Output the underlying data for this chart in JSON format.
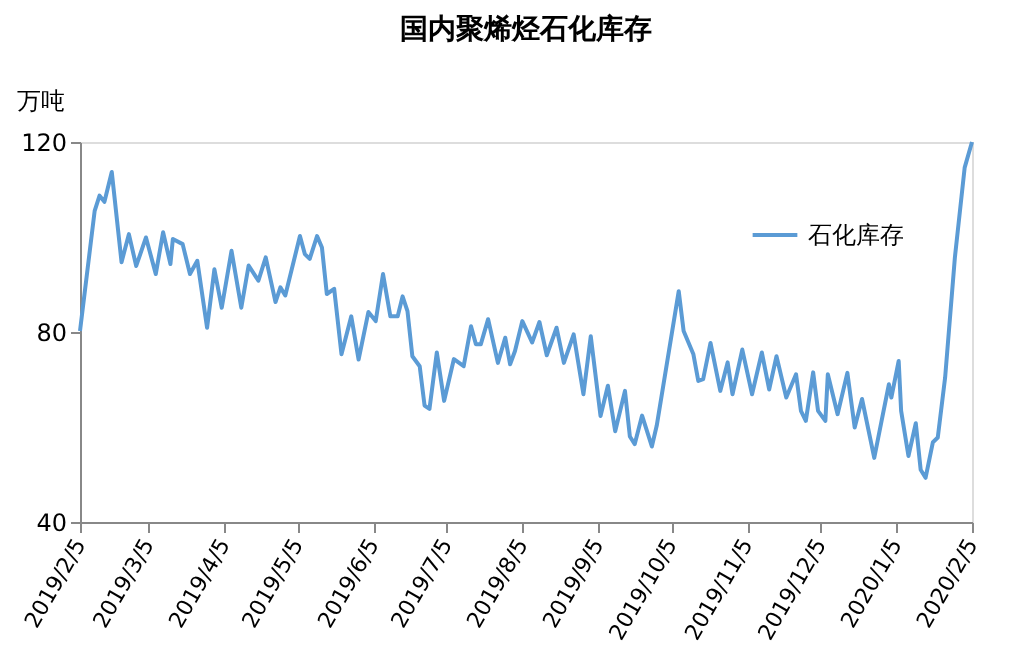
{
  "chart_data": {
    "type": "line",
    "title": "国内聚烯烃石化库存",
    "ylabel": "万吨",
    "x": [
      "2019-02-05",
      "2019-02-11",
      "2019-02-13",
      "2019-02-15",
      "2019-02-18",
      "2019-02-22",
      "2019-02-25",
      "2019-02-28",
      "2019-03-04",
      "2019-03-08",
      "2019-03-11",
      "2019-03-14",
      "2019-03-15",
      "2019-03-19",
      "2019-03-22",
      "2019-03-25",
      "2019-03-29",
      "2019-04-01",
      "2019-04-04",
      "2019-04-08",
      "2019-04-12",
      "2019-04-15",
      "2019-04-19",
      "2019-04-22",
      "2019-04-26",
      "2019-04-28",
      "2019-04-30",
      "2019-05-06",
      "2019-05-08",
      "2019-05-10",
      "2019-05-13",
      "2019-05-15",
      "2019-05-17",
      "2019-05-20",
      "2019-05-23",
      "2019-05-27",
      "2019-05-30",
      "2019-06-03",
      "2019-06-06",
      "2019-06-09",
      "2019-06-12",
      "2019-06-15",
      "2019-06-17",
      "2019-06-19",
      "2019-06-21",
      "2019-06-24",
      "2019-06-26",
      "2019-06-28",
      "2019-07-01",
      "2019-07-04",
      "2019-07-08",
      "2019-07-12",
      "2019-07-15",
      "2019-07-17",
      "2019-07-19",
      "2019-07-22",
      "2019-07-26",
      "2019-07-29",
      "2019-07-31",
      "2019-08-02",
      "2019-08-05",
      "2019-08-09",
      "2019-08-12",
      "2019-08-15",
      "2019-08-19",
      "2019-08-22",
      "2019-08-26",
      "2019-08-30",
      "2019-09-02",
      "2019-09-06",
      "2019-09-09",
      "2019-09-12",
      "2019-09-16",
      "2019-09-18",
      "2019-09-20",
      "2019-09-23",
      "2019-09-27",
      "2019-09-29",
      "2019-10-08",
      "2019-10-10",
      "2019-10-14",
      "2019-10-16",
      "2019-10-18",
      "2019-10-21",
      "2019-10-25",
      "2019-10-28",
      "2019-10-30",
      "2019-11-03",
      "2019-11-07",
      "2019-11-11",
      "2019-11-14",
      "2019-11-17",
      "2019-11-21",
      "2019-11-25",
      "2019-11-27",
      "2019-11-29",
      "2019-12-02",
      "2019-12-04",
      "2019-12-07",
      "2019-12-08",
      "2019-12-12",
      "2019-12-16",
      "2019-12-19",
      "2019-12-22",
      "2019-12-27",
      "2019-12-30",
      "2020-01-02",
      "2020-01-03",
      "2020-01-06",
      "2020-01-07",
      "2020-01-10",
      "2020-01-13",
      "2020-01-15",
      "2020-01-17",
      "2020-01-20",
      "2020-01-22",
      "2020-01-25",
      "2020-01-29",
      "2020-02-02",
      "2020-02-05"
    ],
    "series": [
      {
        "name": "石化库存",
        "color": "#5b9bd5",
        "values": [
          80.2,
          105.5,
          108.7,
          107.4,
          113.7,
          94.7,
          100.6,
          93.9,
          99.9,
          92.2,
          101,
          94.3,
          99.6,
          98.5,
          92.2,
          95,
          80.9,
          93.2,
          85.1,
          97.1,
          85.1,
          94,
          90.8,
          95.7,
          86.3,
          89.4,
          87.7,
          100.2,
          96.4,
          95.4,
          100.2,
          97.8,
          88,
          89.1,
          75.3,
          83.3,
          74.2,
          84.2,
          82.3,
          92.2,
          83.3,
          83.3,
          87.5,
          84.4,
          74.9,
          72.8,
          64.5,
          63.8,
          75.7,
          65.5,
          74.3,
          72.8,
          81.2,
          77.4,
          77.4,
          82.7,
          73.5,
          78.8,
          73.2,
          76,
          82.3,
          77.8,
          82.1,
          75.1,
          80.9,
          73.5,
          79.5,
          66.9,
          79.1,
          62.3,
          68.7,
          59.1,
          67.6,
          58,
          56.4,
          62.4,
          55.9,
          60.3,
          88.6,
          80.2,
          75.3,
          69.7,
          70.1,
          77.7,
          67.6,
          73.6,
          66.9,
          76.3,
          66.9,
          75.7,
          67.9,
          74.9,
          66.2,
          71.1,
          63.4,
          61.3,
          71.5,
          63.4,
          61.3,
          71.1,
          62.7,
          71.4,
          59.9,
          65.9,
          53.5,
          61.3,
          69,
          66.2,
          73.9,
          63.4,
          53.9,
          60.8,
          51,
          49.3,
          56.8,
          57.8,
          70.4,
          95.7,
          114.6,
          120
        ]
      }
    ],
    "xlim": [
      "2019-02-05",
      "2020-02-05"
    ],
    "xticks": [
      {
        "value": "2019-02-05",
        "label": "2019/2/5"
      },
      {
        "value": "2019-03-05",
        "label": "2019/3/5"
      },
      {
        "value": "2019-04-05",
        "label": "2019/4/5"
      },
      {
        "value": "2019-05-05",
        "label": "2019/5/5"
      },
      {
        "value": "2019-06-05",
        "label": "2019/6/5"
      },
      {
        "value": "2019-07-05",
        "label": "2019/7/5"
      },
      {
        "value": "2019-08-05",
        "label": "2019/8/5"
      },
      {
        "value": "2019-09-05",
        "label": "2019/9/5"
      },
      {
        "value": "2019-10-05",
        "label": "2019/10/5"
      },
      {
        "value": "2019-11-05",
        "label": "2019/11/5"
      },
      {
        "value": "2019-12-05",
        "label": "2019/12/5"
      },
      {
        "value": "2020-01-05",
        "label": "2020/1/5"
      },
      {
        "value": "2020-02-05",
        "label": "2020/2/5"
      }
    ],
    "ylim": [
      40,
      120
    ],
    "yticks": [
      40,
      80,
      120
    ],
    "grid": false,
    "legend": "top right",
    "marker": "none",
    "line_style": "solid"
  }
}
